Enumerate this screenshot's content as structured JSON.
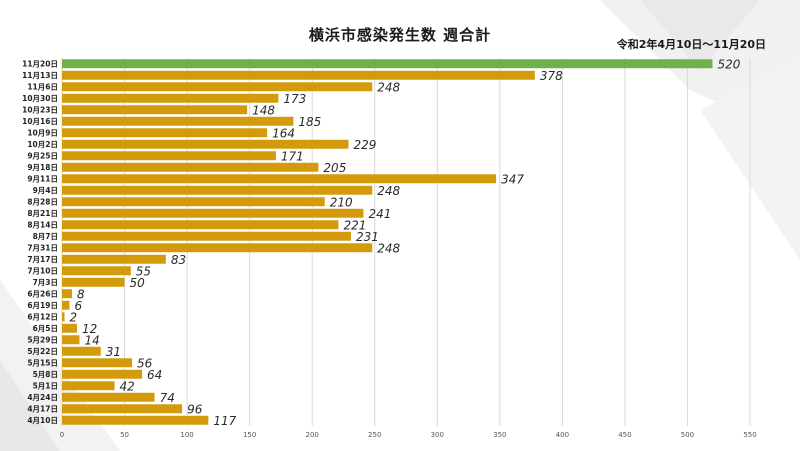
{
  "chart_data": {
    "type": "bar",
    "orientation": "horizontal",
    "title": "横浜市感染発生数 週合計",
    "subtitle": "令和2年4月10日～11月20日",
    "categories": [
      "11月20日",
      "11月13日",
      "11月6日",
      "10月30日",
      "10月23日",
      "10月16日",
      "10月9日",
      "10月2日",
      "9月25日",
      "9月18日",
      "9月11日",
      "9月4日",
      "8月28日",
      "8月21日",
      "8月14日",
      "8月7日",
      "7月31日",
      "7月17日",
      "7月10日",
      "7月3日",
      "6月26日",
      "6月19日",
      "6月12日",
      "6月5日",
      "5月29日",
      "5月22日",
      "5月15日",
      "5月8日",
      "5月1日",
      "4月24日",
      "4月17日",
      "4月10日"
    ],
    "values": [
      520,
      378,
      248,
      173,
      148,
      185,
      164,
      229,
      171,
      205,
      347,
      248,
      210,
      241,
      221,
      231,
      248,
      83,
      55,
      50,
      8,
      6,
      2,
      12,
      14,
      31,
      56,
      64,
      42,
      74,
      96,
      117
    ],
    "highlight_index": 0,
    "xlim": [
      0,
      550
    ],
    "x_ticks": [
      0,
      50,
      100,
      150,
      200,
      250,
      300,
      350,
      400,
      450,
      500,
      550
    ],
    "grid": true,
    "colors": {
      "bar": "#d39b0b",
      "highlight": "#6fb04b",
      "grid": "#d9d9d9",
      "label": "#2b2b2b"
    }
  }
}
